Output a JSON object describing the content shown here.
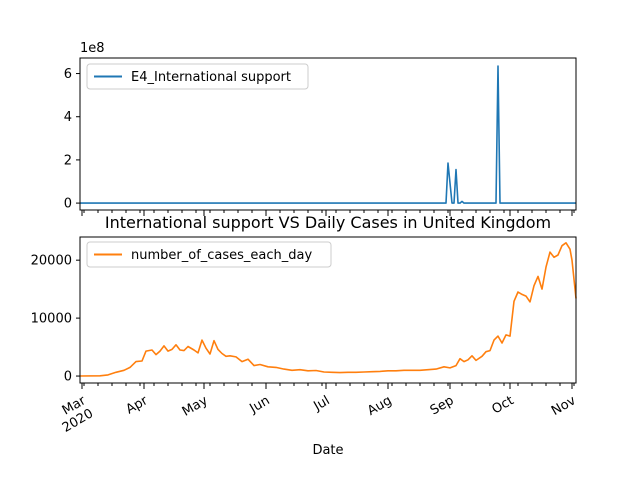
{
  "chart_data": [
    {
      "type": "line",
      "title": "",
      "xlabel": "",
      "ylabel": "",
      "y_scale_label": "1e8",
      "ylim": [
        -32000000,
        672000000
      ],
      "xlim": [
        "2020-02-29",
        "2020-11-03"
      ],
      "y_ticks": [
        0,
        200000000,
        400000000,
        600000000
      ],
      "y_tick_labels": [
        "0",
        "2",
        "4",
        "6"
      ],
      "legend": "top-left",
      "grid": false,
      "series": [
        {
          "name": "E4_International support",
          "color": "#1f77b4",
          "points": [
            [
              "2020-02-29",
              0
            ],
            [
              "2020-08-28",
              0
            ],
            [
              "2020-08-30",
              0
            ],
            [
              "2020-08-31",
              185000000
            ],
            [
              "2020-09-02",
              0
            ],
            [
              "2020-09-03",
              0
            ],
            [
              "2020-09-04",
              155000000
            ],
            [
              "2020-09-05",
              0
            ],
            [
              "2020-09-06",
              0
            ],
            [
              "2020-09-07",
              8000000
            ],
            [
              "2020-09-08",
              0
            ],
            [
              "2020-09-24",
              0
            ],
            [
              "2020-09-25",
              635000000
            ],
            [
              "2020-09-26",
              0
            ],
            [
              "2020-11-03",
              0
            ]
          ]
        }
      ]
    },
    {
      "type": "line",
      "title": "International support VS Daily Cases in United Kingdom",
      "xlabel": "Date",
      "ylabel": "",
      "ylim": [
        -1200,
        24000
      ],
      "xlim": [
        "2020-02-29",
        "2020-11-03"
      ],
      "y_ticks": [
        0,
        10000,
        20000
      ],
      "y_tick_labels": [
        "0",
        "10000",
        "20000"
      ],
      "x_ticks": [
        "2020-03-01",
        "2020-04-01",
        "2020-05-01",
        "2020-06-01",
        "2020-07-01",
        "2020-08-01",
        "2020-09-01",
        "2020-10-01",
        "2020-11-01"
      ],
      "x_tick_labels": [
        "Mar\n2020",
        "Apr",
        "May",
        "Jun",
        "Jul",
        "Aug",
        "Sep",
        "Oct",
        "Nov"
      ],
      "legend": "top-left",
      "grid": false,
      "series": [
        {
          "name": "number_of_cases_each_day",
          "color": "#ff7f0e",
          "points": [
            [
              "2020-02-29",
              0
            ],
            [
              "2020-03-10",
              50
            ],
            [
              "2020-03-14",
              200
            ],
            [
              "2020-03-18",
              650
            ],
            [
              "2020-03-22",
              1000
            ],
            [
              "2020-03-25",
              1500
            ],
            [
              "2020-03-28",
              2500
            ],
            [
              "2020-03-31",
              2600
            ],
            [
              "2020-04-02",
              4300
            ],
            [
              "2020-04-05",
              4500
            ],
            [
              "2020-04-07",
              3700
            ],
            [
              "2020-04-09",
              4300
            ],
            [
              "2020-04-11",
              5200
            ],
            [
              "2020-04-13",
              4300
            ],
            [
              "2020-04-15",
              4600
            ],
            [
              "2020-04-17",
              5400
            ],
            [
              "2020-04-19",
              4500
            ],
            [
              "2020-04-21",
              4400
            ],
            [
              "2020-04-23",
              5100
            ],
            [
              "2020-04-26",
              4500
            ],
            [
              "2020-04-28",
              4000
            ],
            [
              "2020-04-30",
              6200
            ],
            [
              "2020-05-02",
              4800
            ],
            [
              "2020-05-04",
              3800
            ],
            [
              "2020-05-06",
              6100
            ],
            [
              "2020-05-08",
              4600
            ],
            [
              "2020-05-10",
              3900
            ],
            [
              "2020-05-12",
              3400
            ],
            [
              "2020-05-14",
              3500
            ],
            [
              "2020-05-17",
              3300
            ],
            [
              "2020-05-20",
              2500
            ],
            [
              "2020-05-23",
              2900
            ],
            [
              "2020-05-26",
              1800
            ],
            [
              "2020-05-29",
              2000
            ],
            [
              "2020-06-02",
              1600
            ],
            [
              "2020-06-06",
              1500
            ],
            [
              "2020-06-10",
              1200
            ],
            [
              "2020-06-14",
              1000
            ],
            [
              "2020-06-18",
              1100
            ],
            [
              "2020-06-22",
              900
            ],
            [
              "2020-06-26",
              950
            ],
            [
              "2020-06-30",
              700
            ],
            [
              "2020-07-04",
              650
            ],
            [
              "2020-07-08",
              600
            ],
            [
              "2020-07-12",
              650
            ],
            [
              "2020-07-16",
              650
            ],
            [
              "2020-07-20",
              700
            ],
            [
              "2020-07-24",
              750
            ],
            [
              "2020-07-28",
              800
            ],
            [
              "2020-08-01",
              900
            ],
            [
              "2020-08-05",
              900
            ],
            [
              "2020-08-09",
              1000
            ],
            [
              "2020-08-13",
              1000
            ],
            [
              "2020-08-17",
              1000
            ],
            [
              "2020-08-21",
              1100
            ],
            [
              "2020-08-25",
              1200
            ],
            [
              "2020-08-29",
              1600
            ],
            [
              "2020-09-01",
              1400
            ],
            [
              "2020-09-04",
              1800
            ],
            [
              "2020-09-06",
              3000
            ],
            [
              "2020-09-08",
              2500
            ],
            [
              "2020-09-10",
              2800
            ],
            [
              "2020-09-12",
              3500
            ],
            [
              "2020-09-14",
              2700
            ],
            [
              "2020-09-17",
              3400
            ],
            [
              "2020-09-19",
              4200
            ],
            [
              "2020-09-21",
              4400
            ],
            [
              "2020-09-23",
              6200
            ],
            [
              "2020-09-25",
              6900
            ],
            [
              "2020-09-27",
              5700
            ],
            [
              "2020-09-29",
              7100
            ],
            [
              "2020-10-01",
              6900
            ],
            [
              "2020-10-03",
              12900
            ],
            [
              "2020-10-05",
              14500
            ],
            [
              "2020-10-07",
              14100
            ],
            [
              "2020-10-09",
              13800
            ],
            [
              "2020-10-11",
              12800
            ],
            [
              "2020-10-13",
              15600
            ],
            [
              "2020-10-15",
              17200
            ],
            [
              "2020-10-17",
              15000
            ],
            [
              "2020-10-19",
              18800
            ],
            [
              "2020-10-21",
              21400
            ],
            [
              "2020-10-23",
              20500
            ],
            [
              "2020-10-25",
              20900
            ],
            [
              "2020-10-27",
              22500
            ],
            [
              "2020-10-29",
              23000
            ],
            [
              "2020-10-31",
              21900
            ],
            [
              "2020-11-01",
              20000
            ],
            [
              "2020-11-03",
              13400
            ]
          ]
        }
      ]
    }
  ]
}
